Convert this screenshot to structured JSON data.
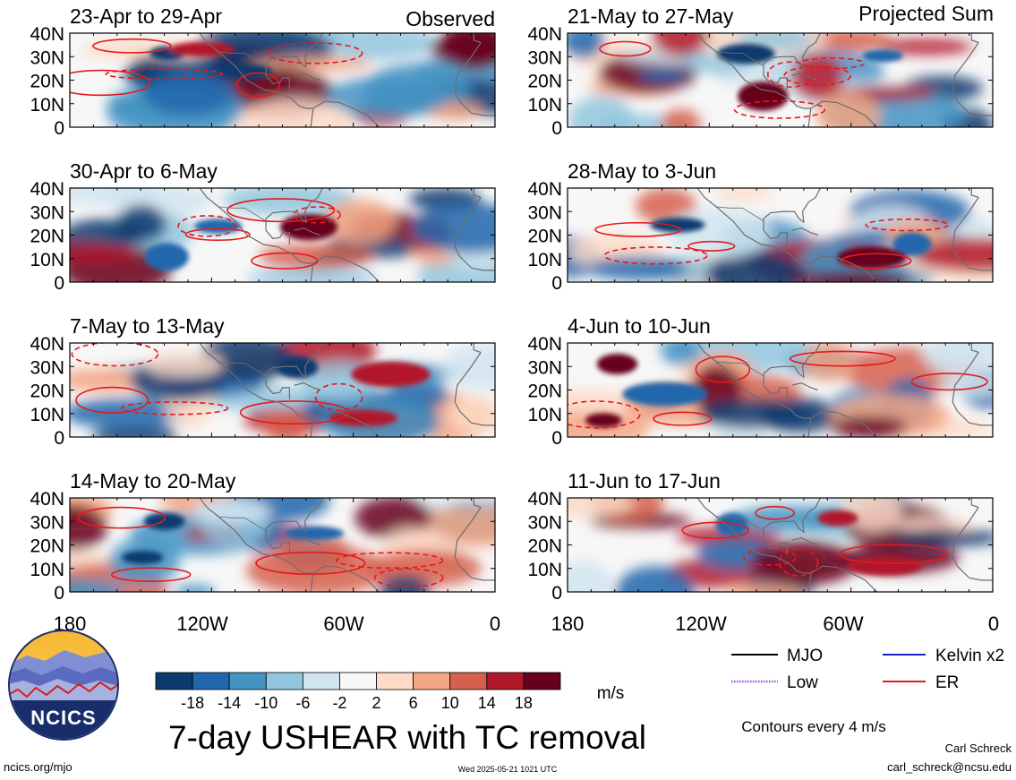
{
  "chart_data": {
    "type": "heatmap",
    "title": "7-day USHEAR with TC removal",
    "column_labels": [
      "Observed",
      "Projected Sum"
    ],
    "panels": [
      {
        "period": "23-Apr to 29-Apr",
        "group": "Observed"
      },
      {
        "period": "30-Apr to 6-May",
        "group": "Observed"
      },
      {
        "period": "7-May to 13-May",
        "group": "Observed"
      },
      {
        "period": "14-May to 20-May",
        "group": "Observed"
      },
      {
        "period": "21-May to 27-May",
        "group": "Projected Sum"
      },
      {
        "period": "28-May to 3-Jun",
        "group": "Projected Sum"
      },
      {
        "period": "4-Jun to 10-Jun",
        "group": "Projected Sum"
      },
      {
        "period": "11-Jun to 17-Jun",
        "group": "Projected Sum"
      }
    ],
    "y_ticks": [
      "40N",
      "30N",
      "20N",
      "10N",
      "0"
    ],
    "x_ticks": [
      "180",
      "120W",
      "60W",
      "0"
    ],
    "colorbar": {
      "unit": "m/s",
      "tick_labels": [
        "-18",
        "-14",
        "-10",
        "-6",
        "-2",
        "2",
        "6",
        "10",
        "14",
        "18"
      ],
      "colors": [
        "#0b3b6e",
        "#2166ac",
        "#4393c3",
        "#92c5de",
        "#d1e5f0",
        "#f7f7f7",
        "#fddbc7",
        "#f4a582",
        "#d6604d",
        "#b2182b",
        "#67001f"
      ]
    },
    "legend": [
      {
        "label": "MJO",
        "color": "#000000",
        "style": "solid"
      },
      {
        "label": "Kelvin x2",
        "color": "#1f1fcc",
        "style": "solid"
      },
      {
        "label": "Low",
        "color": "#9b4fd9",
        "style": "dotted"
      },
      {
        "label": "ER",
        "color": "#e41a1c",
        "style": "solid"
      }
    ],
    "contour_note": "Contours every 4 m/s"
  },
  "logo_text": "NCICS",
  "footer": {
    "url": "ncics.org/mjo",
    "timestamp": "Wed 2025-05-21 1021 UTC",
    "author": "Carl Schreck",
    "email": "carl_schreck@ncsu.edu"
  }
}
